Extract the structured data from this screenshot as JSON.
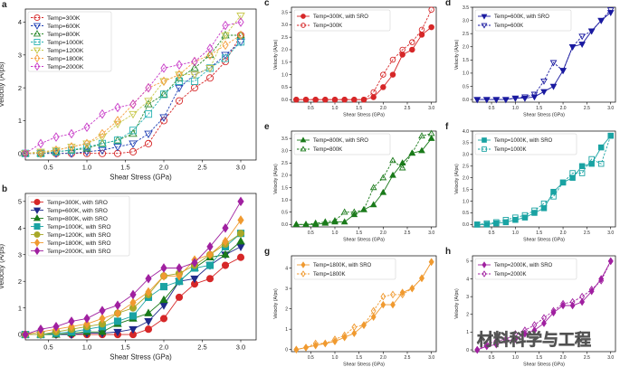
{
  "chart_data": [
    {
      "panel": "a",
      "type": "line",
      "xlabel": "Shear Stress (GPa)",
      "ylabel": "Velocity (A/ps)",
      "xlim": [
        0.2,
        3.2
      ],
      "ylim": [
        -0.2,
        4.4
      ],
      "xticks": [
        "0.5",
        "1.0",
        "1.5",
        "2.0",
        "2.5",
        "3.0"
      ],
      "yticks": [
        "0",
        "1",
        "2",
        "3",
        "4"
      ],
      "x": [
        0.2,
        0.4,
        0.6,
        0.8,
        1.0,
        1.2,
        1.4,
        1.6,
        1.8,
        2.0,
        2.2,
        2.4,
        2.6,
        2.8,
        3.0
      ],
      "legend_position": "top-left",
      "series": [
        {
          "name": "Temp=300K",
          "color": "#d62728",
          "marker": "circle",
          "values": [
            0,
            0,
            0,
            0,
            0,
            0,
            0,
            0.05,
            0.3,
            1.0,
            1.6,
            2.0,
            2.3,
            2.8,
            3.6
          ]
        },
        {
          "name": "Temp=600K",
          "color": "#1f3fb4",
          "marker": "tri-down",
          "values": [
            0,
            0,
            0,
            0,
            0.05,
            0.1,
            0.2,
            0.3,
            0.6,
            1.1,
            2.0,
            2.4,
            2.6,
            3.0,
            3.4
          ]
        },
        {
          "name": "Temp=800K",
          "color": "#2e8b2e",
          "marker": "tri-up",
          "values": [
            0,
            0,
            0.05,
            0.1,
            0.15,
            0.3,
            0.4,
            0.6,
            1.5,
            1.8,
            2.3,
            2.6,
            3.0,
            3.6,
            3.6
          ]
        },
        {
          "name": "Temp=1000K",
          "color": "#2ab3b3",
          "marker": "square",
          "values": [
            0,
            0,
            0.05,
            0.1,
            0.2,
            0.3,
            0.4,
            0.7,
            1.2,
            1.8,
            2.2,
            2.2,
            2.6,
            2.9,
            3.4
          ]
        },
        {
          "name": "Temp=1200K",
          "color": "#c8c84a",
          "marker": "tri-down",
          "values": [
            0,
            0.05,
            0.1,
            0.2,
            0.3,
            0.5,
            0.9,
            1.2,
            1.6,
            2.2,
            2.4,
            2.4,
            2.6,
            3.6,
            4.2
          ]
        },
        {
          "name": "Temp=1800K",
          "color": "#f5a142",
          "marker": "diamond",
          "values": [
            0,
            0,
            0.1,
            0.2,
            0.3,
            0.6,
            1.0,
            1.5,
            2.0,
            2.2,
            2.4,
            2.8,
            3.0,
            3.3,
            3.6
          ]
        },
        {
          "name": "Temp=2000K",
          "color": "#c83cc8",
          "marker": "diamond",
          "values": [
            0,
            0.3,
            0.5,
            0.6,
            0.8,
            1.2,
            1.4,
            1.5,
            2.0,
            2.6,
            2.7,
            2.8,
            3.2,
            3.9,
            4.0
          ]
        }
      ]
    },
    {
      "panel": "b",
      "type": "line",
      "xlabel": "Shear Stress (GPa)",
      "ylabel": "Velocity (A/ps)",
      "xlim": [
        0.2,
        3.2
      ],
      "ylim": [
        -0.2,
        5.3
      ],
      "xticks": [
        "0.5",
        "1.0",
        "1.5",
        "2.0",
        "2.5",
        "3.0"
      ],
      "yticks": [
        "0",
        "1",
        "2",
        "3",
        "4",
        "5"
      ],
      "x": [
        0.2,
        0.4,
        0.6,
        0.8,
        1.0,
        1.2,
        1.4,
        1.6,
        1.8,
        2.0,
        2.2,
        2.4,
        2.6,
        2.8,
        3.0
      ],
      "legend_position": "top-left",
      "series": [
        {
          "name": "Temp=300K, with SRO",
          "color": "#d62728",
          "marker": "circle",
          "values": [
            0,
            0,
            0,
            0,
            0,
            0,
            0,
            0,
            0.2,
            0.6,
            1.4,
            1.9,
            2.1,
            2.6,
            2.9
          ]
        },
        {
          "name": "Temp=600K, with SRO",
          "color": "#1f2a8a",
          "marker": "tri-down",
          "values": [
            0,
            0,
            0,
            0,
            0.05,
            0.05,
            0.1,
            0.2,
            0.5,
            1.1,
            2.0,
            2.1,
            2.6,
            3.0,
            3.3
          ]
        },
        {
          "name": "Temp=800K, with SRO",
          "color": "#1a7a1a",
          "marker": "tri-up",
          "values": [
            0,
            0,
            0,
            0.05,
            0.1,
            0.1,
            0.4,
            0.6,
            0.8,
            1.3,
            2.0,
            2.5,
            2.9,
            3.0,
            3.5
          ]
        },
        {
          "name": "Temp=1000K, with SRO",
          "color": "#1aa3a3",
          "marker": "square",
          "values": [
            0,
            0,
            0.05,
            0.1,
            0.2,
            0.3,
            0.5,
            0.7,
            1.4,
            1.8,
            2.0,
            2.5,
            2.6,
            3.3,
            3.8
          ]
        },
        {
          "name": "Temp=1200K, with SRO",
          "color": "#a8a828",
          "marker": "circle",
          "values": [
            0,
            0,
            0.1,
            0.2,
            0.3,
            0.4,
            0.8,
            1.0,
            1.5,
            2.2,
            2.3,
            2.6,
            3.0,
            3.4,
            3.8
          ]
        },
        {
          "name": "Temp=1800K, with SRO",
          "color": "#f09a30",
          "marker": "diamond",
          "values": [
            0,
            0.1,
            0.2,
            0.3,
            0.4,
            0.6,
            0.8,
            1.2,
            1.6,
            2.2,
            2.2,
            2.8,
            3.0,
            3.5,
            4.3
          ]
        },
        {
          "name": "Temp=2000K, with SRO",
          "color": "#a020a0",
          "marker": "diamond",
          "values": [
            0,
            0.2,
            0.3,
            0.5,
            0.6,
            0.9,
            1.1,
            1.5,
            2.1,
            2.5,
            2.5,
            2.7,
            3.3,
            4.0,
            5.0
          ]
        }
      ]
    },
    {
      "panel": "c",
      "type": "line",
      "xlabel": "Shear Stress (GPa)",
      "ylabel": "Velocity (A/ps)",
      "xlim": [
        0.1,
        3.1
      ],
      "ylim": [
        -0.1,
        3.7
      ],
      "xticks": [
        "0.5",
        "1.0",
        "1.5",
        "2.0",
        "2.5",
        "3.0"
      ],
      "yticks": [
        "0.0",
        "0.5",
        "1.0",
        "1.5",
        "2.0",
        "2.5",
        "3.0",
        "3.5"
      ],
      "x": [
        0.2,
        0.4,
        0.6,
        0.8,
        1.0,
        1.2,
        1.4,
        1.6,
        1.8,
        2.0,
        2.2,
        2.4,
        2.6,
        2.8,
        3.0
      ],
      "legend_position": "top-left",
      "series": [
        {
          "name": "Temp=300K, with SRO",
          "color": "#d62728",
          "filled": true,
          "marker": "circle",
          "values": [
            0,
            0,
            0,
            0,
            0,
            0,
            0,
            0,
            0.1,
            0.5,
            1.0,
            1.8,
            2.0,
            2.6,
            2.9
          ]
        },
        {
          "name": "Temp=300K",
          "color": "#d62728",
          "filled": false,
          "marker": "circle",
          "dashed": true,
          "values": [
            0,
            0,
            0,
            0,
            0,
            0,
            0,
            0,
            0.3,
            1.0,
            1.6,
            2.0,
            2.3,
            2.8,
            3.6
          ]
        }
      ]
    },
    {
      "panel": "d",
      "type": "line",
      "xlabel": "Shear Stress (GPa)",
      "ylabel": "Velocity (A/ps)",
      "xlim": [
        0.1,
        3.1
      ],
      "ylim": [
        -0.1,
        3.5
      ],
      "xticks": [
        "0.5",
        "1.0",
        "1.5",
        "2.0",
        "2.5",
        "3.0"
      ],
      "yticks": [
        "0.0",
        "0.5",
        "1.0",
        "1.5",
        "2.0",
        "2.5",
        "3.0",
        "3.5"
      ],
      "x": [
        0.2,
        0.4,
        0.6,
        0.8,
        1.0,
        1.2,
        1.4,
        1.6,
        1.8,
        2.0,
        2.2,
        2.4,
        2.6,
        2.8,
        3.0
      ],
      "legend_position": "top-left",
      "series": [
        {
          "name": "Temp=600K, with SRO",
          "color": "#1a1aa0",
          "filled": true,
          "marker": "tri-down",
          "values": [
            0,
            0,
            0,
            0,
            0.05,
            0.05,
            0.1,
            0.3,
            0.5,
            1.1,
            2.0,
            2.1,
            2.6,
            3.0,
            3.3
          ]
        },
        {
          "name": "Temp=600K",
          "color": "#1a1aa0",
          "filled": false,
          "marker": "tri-down",
          "dashed": true,
          "values": [
            0,
            0,
            0,
            0,
            0.05,
            0.1,
            0.2,
            0.7,
            1.4,
            1.1,
            2.0,
            2.4,
            2.6,
            3.0,
            3.4
          ]
        }
      ]
    },
    {
      "panel": "e",
      "type": "line",
      "xlabel": "Shear Stress (GPa)",
      "ylabel": "Velocity (A/ps)",
      "xlim": [
        0.1,
        3.1
      ],
      "ylim": [
        -0.1,
        3.8
      ],
      "xticks": [
        "0.5",
        "1.0",
        "1.5",
        "2.0",
        "2.5",
        "3.0"
      ],
      "yticks": [
        "0.0",
        "0.5",
        "1.0",
        "1.5",
        "2.0",
        "2.5",
        "3.0",
        "3.5"
      ],
      "x": [
        0.2,
        0.4,
        0.6,
        0.8,
        1.0,
        1.2,
        1.4,
        1.6,
        1.8,
        2.0,
        2.2,
        2.4,
        2.6,
        2.8,
        3.0
      ],
      "legend_position": "top-left",
      "series": [
        {
          "name": "Temp=800K, with SRO",
          "color": "#1a7a1a",
          "filled": true,
          "marker": "tri-up",
          "values": [
            0,
            0,
            0,
            0.05,
            0.1,
            0.1,
            0.4,
            0.6,
            0.8,
            1.3,
            2.0,
            2.5,
            2.9,
            3.0,
            3.5
          ]
        },
        {
          "name": "Temp=800K",
          "color": "#1a7a1a",
          "filled": false,
          "marker": "tri-up",
          "dashed": true,
          "values": [
            0,
            0,
            0.05,
            0.1,
            0.15,
            0.5,
            0.5,
            0.6,
            1.5,
            1.9,
            2.6,
            2.3,
            2.9,
            3.6,
            3.7
          ]
        }
      ]
    },
    {
      "panel": "f",
      "type": "line",
      "xlabel": "Shear Stress (GPa)",
      "ylabel": "Velocity (A/ps)",
      "xlim": [
        0.1,
        3.1
      ],
      "ylim": [
        -0.1,
        4.0
      ],
      "xticks": [
        "0.5",
        "1.0",
        "1.5",
        "2.0",
        "2.5",
        "3.0"
      ],
      "yticks": [
        "0.0",
        "0.5",
        "1.0",
        "1.5",
        "2.0",
        "2.5",
        "3.0",
        "3.5",
        "4.0"
      ],
      "x": [
        0.2,
        0.4,
        0.6,
        0.8,
        1.0,
        1.2,
        1.4,
        1.6,
        1.8,
        2.0,
        2.2,
        2.4,
        2.6,
        2.8,
        3.0
      ],
      "legend_position": "top-left",
      "series": [
        {
          "name": "Temp=1000K, with SRO",
          "color": "#1aa3a3",
          "filled": true,
          "marker": "square",
          "values": [
            0,
            0,
            0.05,
            0.1,
            0.2,
            0.3,
            0.5,
            0.7,
            1.4,
            1.8,
            2.0,
            2.5,
            2.6,
            3.3,
            3.8
          ]
        },
        {
          "name": "Temp=1000K",
          "color": "#1aa3a3",
          "filled": false,
          "marker": "square",
          "dashed": true,
          "values": [
            0,
            0.05,
            0.1,
            0.2,
            0.3,
            0.4,
            0.6,
            0.9,
            1.2,
            1.8,
            2.2,
            2.2,
            2.8,
            2.6,
            3.8
          ]
        }
      ]
    },
    {
      "panel": "g",
      "type": "line",
      "xlabel": "Shear Stress (GPa)",
      "ylabel": "Velocity (A/ps)",
      "xlim": [
        0.1,
        3.1
      ],
      "ylim": [
        -0.1,
        4.6
      ],
      "xticks": [
        "0.5",
        "1.0",
        "1.5",
        "2.0",
        "2.5",
        "3.0"
      ],
      "yticks": [
        "0",
        "1",
        "2",
        "3",
        "4"
      ],
      "x": [
        0.2,
        0.4,
        0.6,
        0.8,
        1.0,
        1.2,
        1.4,
        1.6,
        1.8,
        2.0,
        2.2,
        2.4,
        2.6,
        2.8,
        3.0
      ],
      "legend_position": "top-left",
      "series": [
        {
          "name": "Temp=1800K, with SRO",
          "color": "#f09a30",
          "filled": true,
          "marker": "diamond",
          "values": [
            0,
            0.1,
            0.2,
            0.3,
            0.4,
            0.6,
            0.8,
            1.2,
            1.6,
            2.2,
            2.2,
            2.8,
            3.0,
            3.5,
            4.3
          ]
        },
        {
          "name": "Temp=1800K",
          "color": "#f09a30",
          "filled": false,
          "marker": "diamond",
          "dashed": true,
          "values": [
            0,
            0.1,
            0.3,
            0.3,
            0.5,
            0.7,
            1.1,
            1.2,
            1.9,
            2.6,
            2.7,
            2.7,
            3.0,
            3.5,
            4.3
          ]
        }
      ]
    },
    {
      "panel": "h",
      "type": "line",
      "xlabel": "Shear Stress (GPa)",
      "ylabel": "Velocity (A/ps)",
      "xlim": [
        0.1,
        3.1
      ],
      "ylim": [
        -0.1,
        5.3
      ],
      "xticks": [
        "0.5",
        "1.0",
        "1.5",
        "2.0",
        "2.5",
        "3.0"
      ],
      "yticks": [
        "0",
        "1",
        "2",
        "3",
        "4",
        "5"
      ],
      "x": [
        0.2,
        0.4,
        0.6,
        0.8,
        1.0,
        1.2,
        1.4,
        1.6,
        1.8,
        2.0,
        2.2,
        2.4,
        2.6,
        2.8,
        3.0
      ],
      "legend_position": "top-left",
      "series": [
        {
          "name": "Temp=2000K, with SRO",
          "color": "#a020a0",
          "filled": true,
          "marker": "diamond",
          "values": [
            0,
            0.2,
            0.3,
            0.5,
            0.6,
            0.9,
            1.1,
            1.5,
            2.1,
            2.5,
            2.5,
            2.7,
            3.3,
            4.0,
            5.0
          ]
        },
        {
          "name": "Temp=2000K",
          "color": "#a020a0",
          "filled": false,
          "marker": "diamond",
          "dashed": true,
          "values": [
            0,
            0.3,
            0.5,
            0.6,
            0.9,
            1.1,
            1.4,
            1.8,
            2.2,
            2.6,
            2.7,
            3.0,
            3.4,
            3.9,
            5.0
          ]
        }
      ]
    }
  ],
  "watermark": "材料科学与工程"
}
